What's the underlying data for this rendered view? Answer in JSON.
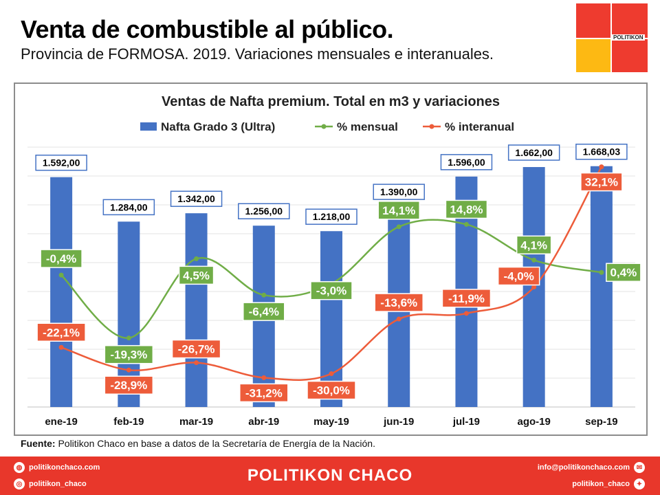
{
  "header": {
    "title": "Venta de combustible al público.",
    "subtitle": "Provincia de FORMOSA. 2019. Variaciones mensuales e interanuales.",
    "logo_text": "POLITIKON"
  },
  "chart_data": {
    "type": "bar",
    "title": "Ventas de Nafta premium. Total en m3 y variaciones",
    "categories": [
      "ene-19",
      "feb-19",
      "mar-19",
      "abr-19",
      "may-19",
      "jun-19",
      "jul-19",
      "ago-19",
      "sep-19"
    ],
    "series": [
      {
        "name": "Nafta Grado 3 (Ultra)",
        "type": "bar",
        "color": "#4472c4",
        "values": [
          1592.0,
          1284.0,
          1342.0,
          1256.0,
          1218.0,
          1390.0,
          1596.0,
          1662.0,
          1668.03
        ],
        "labels": [
          "1.592,00",
          "1.284,00",
          "1.342,00",
          "1.256,00",
          "1.218,00",
          "1.390,00",
          "1.596,00",
          "1.662,00",
          "1.668,03"
        ]
      },
      {
        "name": "% mensual",
        "type": "line",
        "color": "#70ad47",
        "values": [
          -0.4,
          -19.3,
          4.5,
          -6.4,
          -3.0,
          14.1,
          14.8,
          4.1,
          0.4
        ],
        "labels": [
          "-0,4%",
          "-19,3%",
          "4,5%",
          "-6,4%",
          "-3,0%",
          "14,1%",
          "14,8%",
          "4,1%",
          "0,4%"
        ]
      },
      {
        "name": "% interanual",
        "type": "line",
        "color": "#ed5c3a",
        "values": [
          -22.1,
          -28.9,
          -26.7,
          -31.2,
          -30.0,
          -13.6,
          -11.9,
          -4.0,
          32.1
        ],
        "labels": [
          "-22,1%",
          "-28,9%",
          "-26,7%",
          "-31,2%",
          "-30,0%",
          "-13,6%",
          "-11,9%",
          "-4,0%",
          "32,1%"
        ]
      }
    ],
    "legend_position": "top",
    "grid": true
  },
  "source": {
    "label": "Fuente:",
    "text": " Politikon Chaco en base a datos de la Secretaría  de Energía de la Nación."
  },
  "footer": {
    "brand": "POLITIKON CHACO",
    "web": "politikonchaco.com",
    "instagram": "politikon_chaco",
    "email": "info@politikonchaco.com",
    "twitter": "politikon_chaco"
  }
}
